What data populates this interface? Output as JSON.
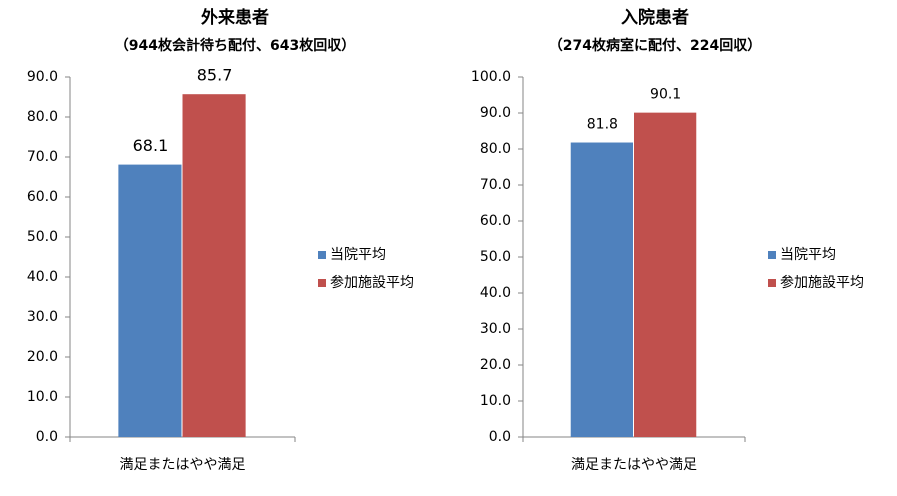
{
  "chart_data": [
    {
      "type": "bar",
      "title": "外来患者",
      "subtitle": "（944枚会計待ち配付、643枚回収）",
      "categories": [
        "満足またはやや満足"
      ],
      "series": [
        {
          "name": "当院平均",
          "color": "#4f81bd",
          "values": [
            68.1
          ]
        },
        {
          "name": "参加施設平均",
          "color": "#c0504d",
          "values": [
            85.7
          ]
        }
      ],
      "ylim": [
        0,
        90
      ],
      "yticks": [
        {
          "value": 0,
          "label": "0.0"
        },
        {
          "value": 10,
          "label": "10.0"
        },
        {
          "value": 20,
          "label": "20.0"
        },
        {
          "value": 30,
          "label": "30.0"
        },
        {
          "value": 40,
          "label": "40.0"
        },
        {
          "value": 50,
          "label": "50.0"
        },
        {
          "value": 60,
          "label": "60.0"
        },
        {
          "value": 70,
          "label": "70.0"
        },
        {
          "value": 80,
          "label": "80.0"
        },
        {
          "value": 90,
          "label": "90.0"
        }
      ],
      "grid": false,
      "legend": "right"
    },
    {
      "type": "bar",
      "title": "入院患者",
      "subtitle": "（274枚病室に配付、224回収）",
      "categories": [
        "満足またはやや満足"
      ],
      "series": [
        {
          "name": "当院平均",
          "color": "#4f81bd",
          "values": [
            81.8
          ]
        },
        {
          "name": "参加施設平均",
          "color": "#c0504d",
          "values": [
            90.1
          ]
        }
      ],
      "ylim": [
        0,
        100
      ],
      "yticks": [
        {
          "value": 0,
          "label": "0.0"
        },
        {
          "value": 10,
          "label": "10.0"
        },
        {
          "value": 20,
          "label": "20.0"
        },
        {
          "value": 30,
          "label": "30.0"
        },
        {
          "value": 40,
          "label": "40.0"
        },
        {
          "value": 50,
          "label": "50.0"
        },
        {
          "value": 60,
          "label": "60.0"
        },
        {
          "value": 70,
          "label": "70.0"
        },
        {
          "value": 80,
          "label": "80.0"
        },
        {
          "value": 90,
          "label": "90.0"
        },
        {
          "value": 100,
          "label": "100.0"
        }
      ],
      "grid": false,
      "legend": "right"
    }
  ]
}
